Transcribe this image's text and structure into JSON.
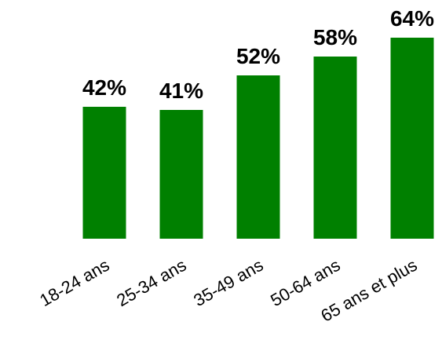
{
  "chart_data": {
    "type": "bar",
    "categories": [
      "18-24 ans",
      "25-34 ans",
      "35-49 ans",
      "50-64 ans",
      "65 ans et plus"
    ],
    "values": [
      42,
      41,
      52,
      58,
      64
    ],
    "value_labels": [
      "42%",
      "41%",
      "52%",
      "58%",
      "64%"
    ],
    "title": "",
    "xlabel": "",
    "ylabel": "",
    "ylim": [
      0,
      100
    ],
    "grid": false,
    "legend": "none",
    "colors": {
      "bar": "#008000",
      "text": "#000000",
      "background": "#ffffff"
    }
  }
}
